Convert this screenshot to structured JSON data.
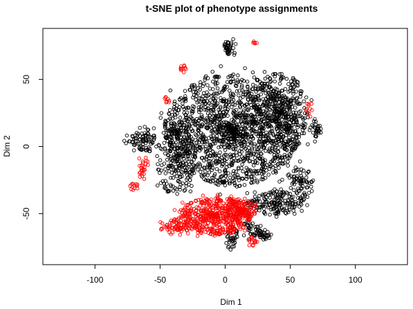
{
  "chart_data": {
    "type": "scatter",
    "title": "t-SNE plot of phenotype assignments",
    "xlabel": "Dim 1",
    "ylabel": "Dim 2",
    "xlim": [
      -140,
      140
    ],
    "ylim": [
      -88,
      88
    ],
    "xticks": [
      -100,
      -50,
      0,
      50,
      100
    ],
    "yticks": [
      -50,
      0,
      50
    ],
    "grid": false,
    "legend": "none",
    "marker": "open-circle",
    "series": [
      {
        "color": "#000000",
        "regions": [
          {
            "cx": 5,
            "cy": 12,
            "rx": 52,
            "ry": 42,
            "n": 1500
          },
          {
            "cx": 42,
            "cy": 25,
            "rx": 22,
            "ry": 30,
            "n": 350
          },
          {
            "cx": -38,
            "cy": -8,
            "rx": 16,
            "ry": 28,
            "n": 220
          },
          {
            "cx": 4,
            "cy": 74,
            "rx": 5,
            "ry": 7,
            "n": 40
          },
          {
            "cx": -62,
            "cy": 5,
            "rx": 8,
            "ry": 10,
            "n": 50
          },
          {
            "cx": -68,
            "cy": 3,
            "rx": 10,
            "ry": 6,
            "n": 30
          },
          {
            "cx": 38,
            "cy": -42,
            "rx": 22,
            "ry": 9,
            "n": 170
          },
          {
            "cx": 58,
            "cy": -28,
            "rx": 10,
            "ry": 12,
            "n": 70
          },
          {
            "cx": 22,
            "cy": -62,
            "rx": 9,
            "ry": 8,
            "n": 45
          },
          {
            "cx": 30,
            "cy": -66,
            "rx": 5,
            "ry": 5,
            "n": 20
          },
          {
            "cx": 70,
            "cy": 12,
            "rx": 4,
            "ry": 9,
            "n": 30
          },
          {
            "cx": 5,
            "cy": -68,
            "rx": 5,
            "ry": 10,
            "n": 35
          }
        ]
      },
      {
        "color": "#ff0000",
        "regions": [
          {
            "cx": -8,
            "cy": -52,
            "rx": 28,
            "ry": 14,
            "n": 520
          },
          {
            "cx": -38,
            "cy": -60,
            "rx": 12,
            "ry": 6,
            "n": 70
          },
          {
            "cx": 12,
            "cy": -47,
            "rx": 14,
            "ry": 9,
            "n": 130
          },
          {
            "cx": -63,
            "cy": -15,
            "rx": 4,
            "ry": 10,
            "n": 25
          },
          {
            "cx": -33,
            "cy": 58,
            "rx": 5,
            "ry": 3,
            "n": 10
          },
          {
            "cx": 23,
            "cy": 77,
            "rx": 2,
            "ry": 2,
            "n": 5
          },
          {
            "cx": -70,
            "cy": -30,
            "rx": 4,
            "ry": 3,
            "n": 12
          },
          {
            "cx": 20,
            "cy": -70,
            "rx": 5,
            "ry": 4,
            "n": 15
          },
          {
            "cx": 65,
            "cy": 28,
            "rx": 3,
            "ry": 6,
            "n": 10
          },
          {
            "cx": -45,
            "cy": 35,
            "rx": 3,
            "ry": 3,
            "n": 8
          }
        ]
      }
    ]
  }
}
